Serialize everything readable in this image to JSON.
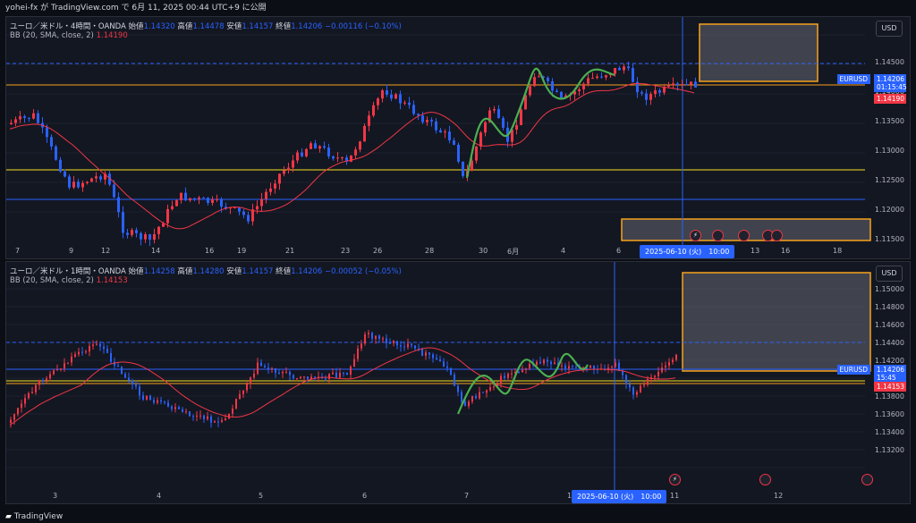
{
  "header": {
    "text": "yohei-fx が TradingView.com で 6月 11, 2025 00:44 UTC+9 に公開"
  },
  "footer": {
    "brand": "TradingView"
  },
  "pane_top": {
    "legend_line1": {
      "symbol": "ユーロ／米ドル・4時間・OANDA",
      "open_label": "始値",
      "open": "1.14320",
      "high_label": "高値",
      "high": "1.14478",
      "low_label": "安値",
      "low": "1.14157",
      "close_label": "終値",
      "close": "1.14206",
      "change": "−0.00116 (−0.10%)"
    },
    "legend_line2": {
      "indicator": "BB (20, SMA, close, 2)",
      "value": "1.14190"
    },
    "currency": "USD",
    "y_ticks": [
      "1.14500",
      "1.14000",
      "1.13500",
      "1.13000",
      "1.12500",
      "1.12000",
      "1.11500"
    ],
    "x_ticks": [
      "7",
      "9",
      "12",
      "14",
      "16",
      "19",
      "21",
      "23",
      "26",
      "28",
      "30",
      "6月",
      "4",
      "6",
      "13",
      "16",
      "18"
    ],
    "price_tag": {
      "symbol": "EURUSD",
      "price": "1.14206",
      "countdown": "01:15:45"
    },
    "bb_tag": "1.14190",
    "crosshair_date": "2025-06-10 (火)　10:00",
    "event_icons": [
      "⚡",
      "🇺🇸",
      "🇺🇸",
      "🇺🇸",
      "🇺🇸"
    ]
  },
  "pane_bottom": {
    "legend_line1": {
      "symbol": "ユーロ／米ドル・1時間・OANDA",
      "open_label": "始値",
      "open": "1.14258",
      "high_label": "高値",
      "high": "1.14280",
      "low_label": "安値",
      "low": "1.14157",
      "close_label": "終値",
      "close": "1.14206",
      "change": "−0.00052 (−0.05%)"
    },
    "legend_line2": {
      "indicator": "BB (20, SMA, close, 2)",
      "value": "1.14153"
    },
    "currency": "USD",
    "y_ticks": [
      "1.15000",
      "1.14800",
      "1.14600",
      "1.14400",
      "1.14200",
      "1.14000",
      "1.13800",
      "1.13600",
      "1.13400",
      "1.13200"
    ],
    "x_ticks": [
      "3",
      "4",
      "5",
      "6",
      "7",
      "10",
      "11",
      "12"
    ],
    "price_tag": {
      "symbol": "EURUSD",
      "price": "1.14206",
      "countdown": "15:45"
    },
    "bb_tag": "1.14153",
    "crosshair_date": "2025-06-10 (火)　10:00",
    "event_icons": [
      "⚡",
      "🇺🇸",
      "🇺🇸"
    ]
  },
  "colors": {
    "up": "#f23645",
    "down": "#2962ff",
    "bb": "#f23645",
    "wave": "#4caf50",
    "zone": "#f7a21b",
    "hline_yellow": "#f7e21b",
    "hline_blue": "#2962ff"
  }
}
